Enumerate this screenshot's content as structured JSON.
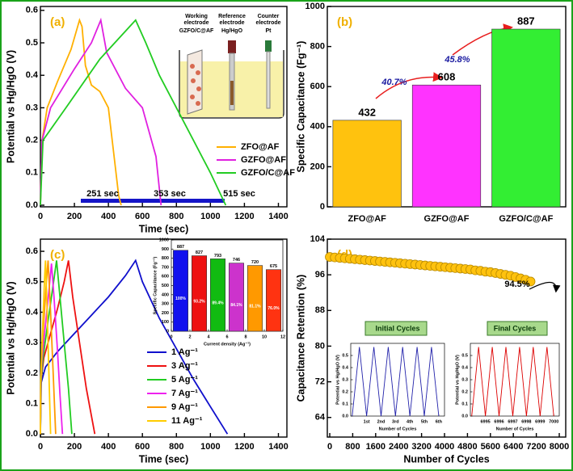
{
  "chart_data": [
    {
      "type": "line",
      "label": "(a)",
      "xlabel": "Time (sec)",
      "ylabel": "Potential vs Hg/HgO (V)",
      "xlim": [
        0,
        1450
      ],
      "ylim": [
        -0.005,
        0.612
      ],
      "xticks": [
        0,
        200,
        400,
        600,
        800,
        1000,
        1200,
        1400
      ],
      "yticks": [
        {
          "value": 0,
          "label": "0.0"
        },
        0.1,
        0.2,
        0.3,
        0.4,
        0.5,
        0.6
      ],
      "series": [
        {
          "name": "ZFO@AF",
          "color": "#ffb000",
          "x": [
            0,
            10,
            40,
            100,
            180,
            230,
            245,
            265,
            300,
            350,
            400,
            440,
            460,
            475
          ],
          "values": [
            0,
            0.2,
            0.3,
            0.38,
            0.48,
            0.57,
            0.55,
            0.43,
            0.37,
            0.35,
            0.3,
            0.12,
            0.03,
            0
          ]
        },
        {
          "name": "GZFO@AF",
          "color": "#e020e0",
          "x": [
            0,
            10,
            60,
            200,
            300,
            355,
            390,
            500,
            600,
            680,
            710
          ],
          "values": [
            0,
            0.2,
            0.3,
            0.42,
            0.5,
            0.57,
            0.47,
            0.36,
            0.3,
            0.15,
            0
          ]
        },
        {
          "name": "GZFO/C@AF",
          "color": "#22cc22",
          "x": [
            0,
            15,
            150,
            350,
            560,
            620,
            700,
            800,
            900,
            1000,
            1090
          ],
          "values": [
            0,
            0.2,
            0.3,
            0.45,
            0.57,
            0.5,
            0.4,
            0.3,
            0.2,
            0.1,
            0
          ]
        }
      ],
      "annotations": [
        "251 sec",
        "353 sec",
        "515 sec"
      ],
      "schematic_labels": [
        "Working",
        "electrode",
        "GZFO/C@AF",
        "Reference",
        "electrode",
        "Hg/HgO",
        "Counter",
        "electrode",
        "Pt"
      ]
    },
    {
      "type": "bar",
      "label": "(b)",
      "ylabel": "Specific Capacitance (Fg⁻¹)",
      "categories": [
        "ZFO@AF",
        "GZFO@AF",
        "GZFO/C@AF"
      ],
      "values": [
        432,
        608,
        887
      ],
      "colors": [
        "#ffc20e",
        "#ff33ff",
        "#33ee33"
      ],
      "ylim": [
        0,
        1000
      ],
      "yticks": [
        0,
        200,
        400,
        600,
        800,
        1000
      ],
      "annotations": [
        "40.7%",
        "45.8%"
      ]
    },
    {
      "type": "line",
      "label": "(c)",
      "xlabel": "Time (sec)",
      "ylabel": "Potential vs Hg/HgO (V)",
      "xlim": [
        0,
        1450
      ],
      "ylim": [
        -0.01,
        0.64
      ],
      "xticks": [
        0,
        200,
        400,
        600,
        800,
        1000,
        1200,
        1400
      ],
      "yticks": [
        {
          "value": 0,
          "label": "0.0"
        },
        0.1,
        0.2,
        0.3,
        0.4,
        0.5,
        0.6
      ],
      "series": [
        {
          "name": "1 Ag⁻¹",
          "color": "#1010cc",
          "x": [
            0,
            5,
            30,
            100,
            200,
            300,
            400,
            500,
            560,
            600,
            700,
            800,
            900,
            1000,
            1100
          ],
          "values": [
            0,
            0.17,
            0.22,
            0.27,
            0.33,
            0.39,
            0.45,
            0.52,
            0.57,
            0.5,
            0.38,
            0.28,
            0.18,
            0.09,
            0
          ]
        },
        {
          "name": "3 Ag⁻¹",
          "color": "#ee1111",
          "x": [
            0,
            3,
            20,
            60,
            100,
            140,
            165,
            190,
            230,
            270,
            320
          ],
          "values": [
            0,
            0.17,
            0.25,
            0.33,
            0.41,
            0.5,
            0.57,
            0.45,
            0.3,
            0.15,
            0
          ]
        },
        {
          "name": "5 Ag⁻¹",
          "color": "#22cc22",
          "x": [
            0,
            3,
            15,
            40,
            70,
            95,
            115,
            140,
            165,
            185
          ],
          "values": [
            0,
            0.17,
            0.25,
            0.35,
            0.47,
            0.57,
            0.45,
            0.3,
            0.15,
            0
          ]
        },
        {
          "name": "7 Ag⁻¹",
          "color": "#ee22ee",
          "x": [
            0,
            2,
            10,
            30,
            50,
            65,
            80,
            100,
            115,
            130
          ],
          "values": [
            0,
            0.17,
            0.25,
            0.36,
            0.47,
            0.56,
            0.45,
            0.28,
            0.13,
            0
          ]
        },
        {
          "name": "9 Ag⁻¹",
          "color": "#ff9900",
          "x": [
            0,
            2,
            8,
            20,
            35,
            45,
            60,
            75,
            90
          ],
          "values": [
            0,
            0.17,
            0.26,
            0.37,
            0.5,
            0.57,
            0.4,
            0.2,
            0
          ]
        },
        {
          "name": "11 Ag⁻¹",
          "color": "#ffcc00",
          "x": [
            0,
            2,
            8,
            18,
            25,
            30,
            40,
            50,
            60
          ],
          "values": [
            0,
            0.17,
            0.28,
            0.42,
            0.52,
            0.57,
            0.4,
            0.2,
            0
          ]
        }
      ],
      "inset": {
        "type": "bar",
        "xlabel": "Current density (Ag⁻¹)",
        "ylabel": "Specific Capacitance (Fg⁻¹)",
        "x": [
          1,
          3,
          5,
          7,
          9,
          11
        ],
        "values": [
          887,
          827,
          793,
          746,
          720,
          675
        ],
        "retention_labels": [
          "100%",
          "93.2%",
          "89.4%",
          "84.1%",
          "81.1%",
          "76.0%"
        ],
        "colors": [
          "#1111ee",
          "#ee1111",
          "#11bb11",
          "#cc33cc",
          "#ff9900",
          "#ff3311"
        ],
        "xlim": [
          0,
          12
        ],
        "ylim": [
          0,
          1000
        ],
        "xticks": [
          0,
          2,
          4,
          6,
          8,
          10,
          12
        ],
        "yticks": [
          0,
          100,
          200,
          300,
          400,
          500,
          600,
          700,
          800,
          900,
          1000
        ]
      }
    },
    {
      "type": "scatter",
      "label": "(d)",
      "xlabel": "Number of Cycles",
      "ylabel": "Capacitance Retention (%)",
      "xlim": [
        -85,
        8225
      ],
      "ylim": [
        59.6,
        104
      ],
      "xticks": [
        0,
        800,
        1600,
        2400,
        3200,
        4000,
        4800,
        5600,
        6400,
        7200,
        8000
      ],
      "yticks": [
        64,
        72,
        80,
        88,
        96,
        104
      ],
      "series": [
        {
          "color": "#ffc20e",
          "x": [
            0,
            175,
            350,
            525,
            700,
            875,
            1050,
            1225,
            1400,
            1575,
            1750,
            1925,
            2100,
            2275,
            2450,
            2625,
            2800,
            2975,
            3150,
            3325,
            3500,
            3675,
            3850,
            4025,
            4200,
            4375,
            4550,
            4725,
            4900,
            5075,
            5250,
            5425,
            5600,
            5775,
            5950,
            6125,
            6300,
            6475,
            6650,
            6825,
            7000
          ],
          "values": [
            100.0,
            99.9,
            99.8,
            99.7,
            99.6,
            99.5,
            99.4,
            99.3,
            99.2,
            99.1,
            99.0,
            98.9,
            98.8,
            98.7,
            98.6,
            98.5,
            98.4,
            98.3,
            98.2,
            98.1,
            98.0,
            97.9,
            97.8,
            97.7,
            97.6,
            97.5,
            97.4,
            97.3,
            97.2,
            97.0,
            96.9,
            96.7,
            96.6,
            96.4,
            96.2,
            96.0,
            95.8,
            95.5,
            95.2,
            94.9,
            94.5
          ]
        }
      ],
      "annotations": [
        "94.5%"
      ],
      "insets": [
        {
          "type": "line",
          "title": "Initial Cycles",
          "xlabel": "Number of Cycles",
          "ylabel": "Potential vs Hg/HgO (V)",
          "xlim": [
            -0.1,
            6.4
          ],
          "ylim": [
            0,
            0.6
          ],
          "xticks": [
            {
              "value": 1,
              "label": "1st"
            },
            {
              "value": 2,
              "label": "2nd"
            },
            {
              "value": 3,
              "label": "3rd"
            },
            {
              "value": 4,
              "label": "4th"
            },
            {
              "value": 5,
              "label": "5th"
            },
            {
              "value": 6,
              "label": "6th"
            }
          ],
          "yticks": [
            {
              "value": 0,
              "label": "0.0"
            },
            0.1,
            0.2,
            0.3,
            0.4,
            0.5
          ],
          "series": [
            {
              "color": "#2222aa",
              "x": [
                0,
                0.5,
                1,
                1.5,
                2,
                2.5,
                3,
                3.5,
                4,
                4.5,
                5,
                5.5,
                6
              ],
              "values": [
                0,
                0.57,
                0,
                0.57,
                0,
                0.57,
                0,
                0.57,
                0,
                0.57,
                0,
                0.57,
                0
              ]
            }
          ]
        },
        {
          "type": "line",
          "title": "Final Cycles",
          "xlabel": "Number of Cycles",
          "ylabel": "Potential vs Hg/HgO (V)",
          "xlim": [
            6993.9,
            7000.4
          ],
          "ylim": [
            0,
            0.6
          ],
          "xticks": [
            6995,
            6996,
            6997,
            6998,
            6999,
            7000
          ],
          "yticks": [
            {
              "value": 0,
              "label": "0.0"
            },
            0.1,
            0.2,
            0.3,
            0.4,
            0.5
          ],
          "series": [
            {
              "color": "#dd0000",
              "x": [
                6994,
                6994.5,
                6995,
                6995.5,
                6996,
                6996.5,
                6997,
                6997.5,
                6998,
                6998.5,
                6999,
                6999.5,
                7000
              ],
              "values": [
                0,
                0.57,
                0,
                0.57,
                0,
                0.57,
                0,
                0.57,
                0,
                0.57,
                0,
                0.57,
                0
              ]
            }
          ]
        }
      ]
    }
  ]
}
